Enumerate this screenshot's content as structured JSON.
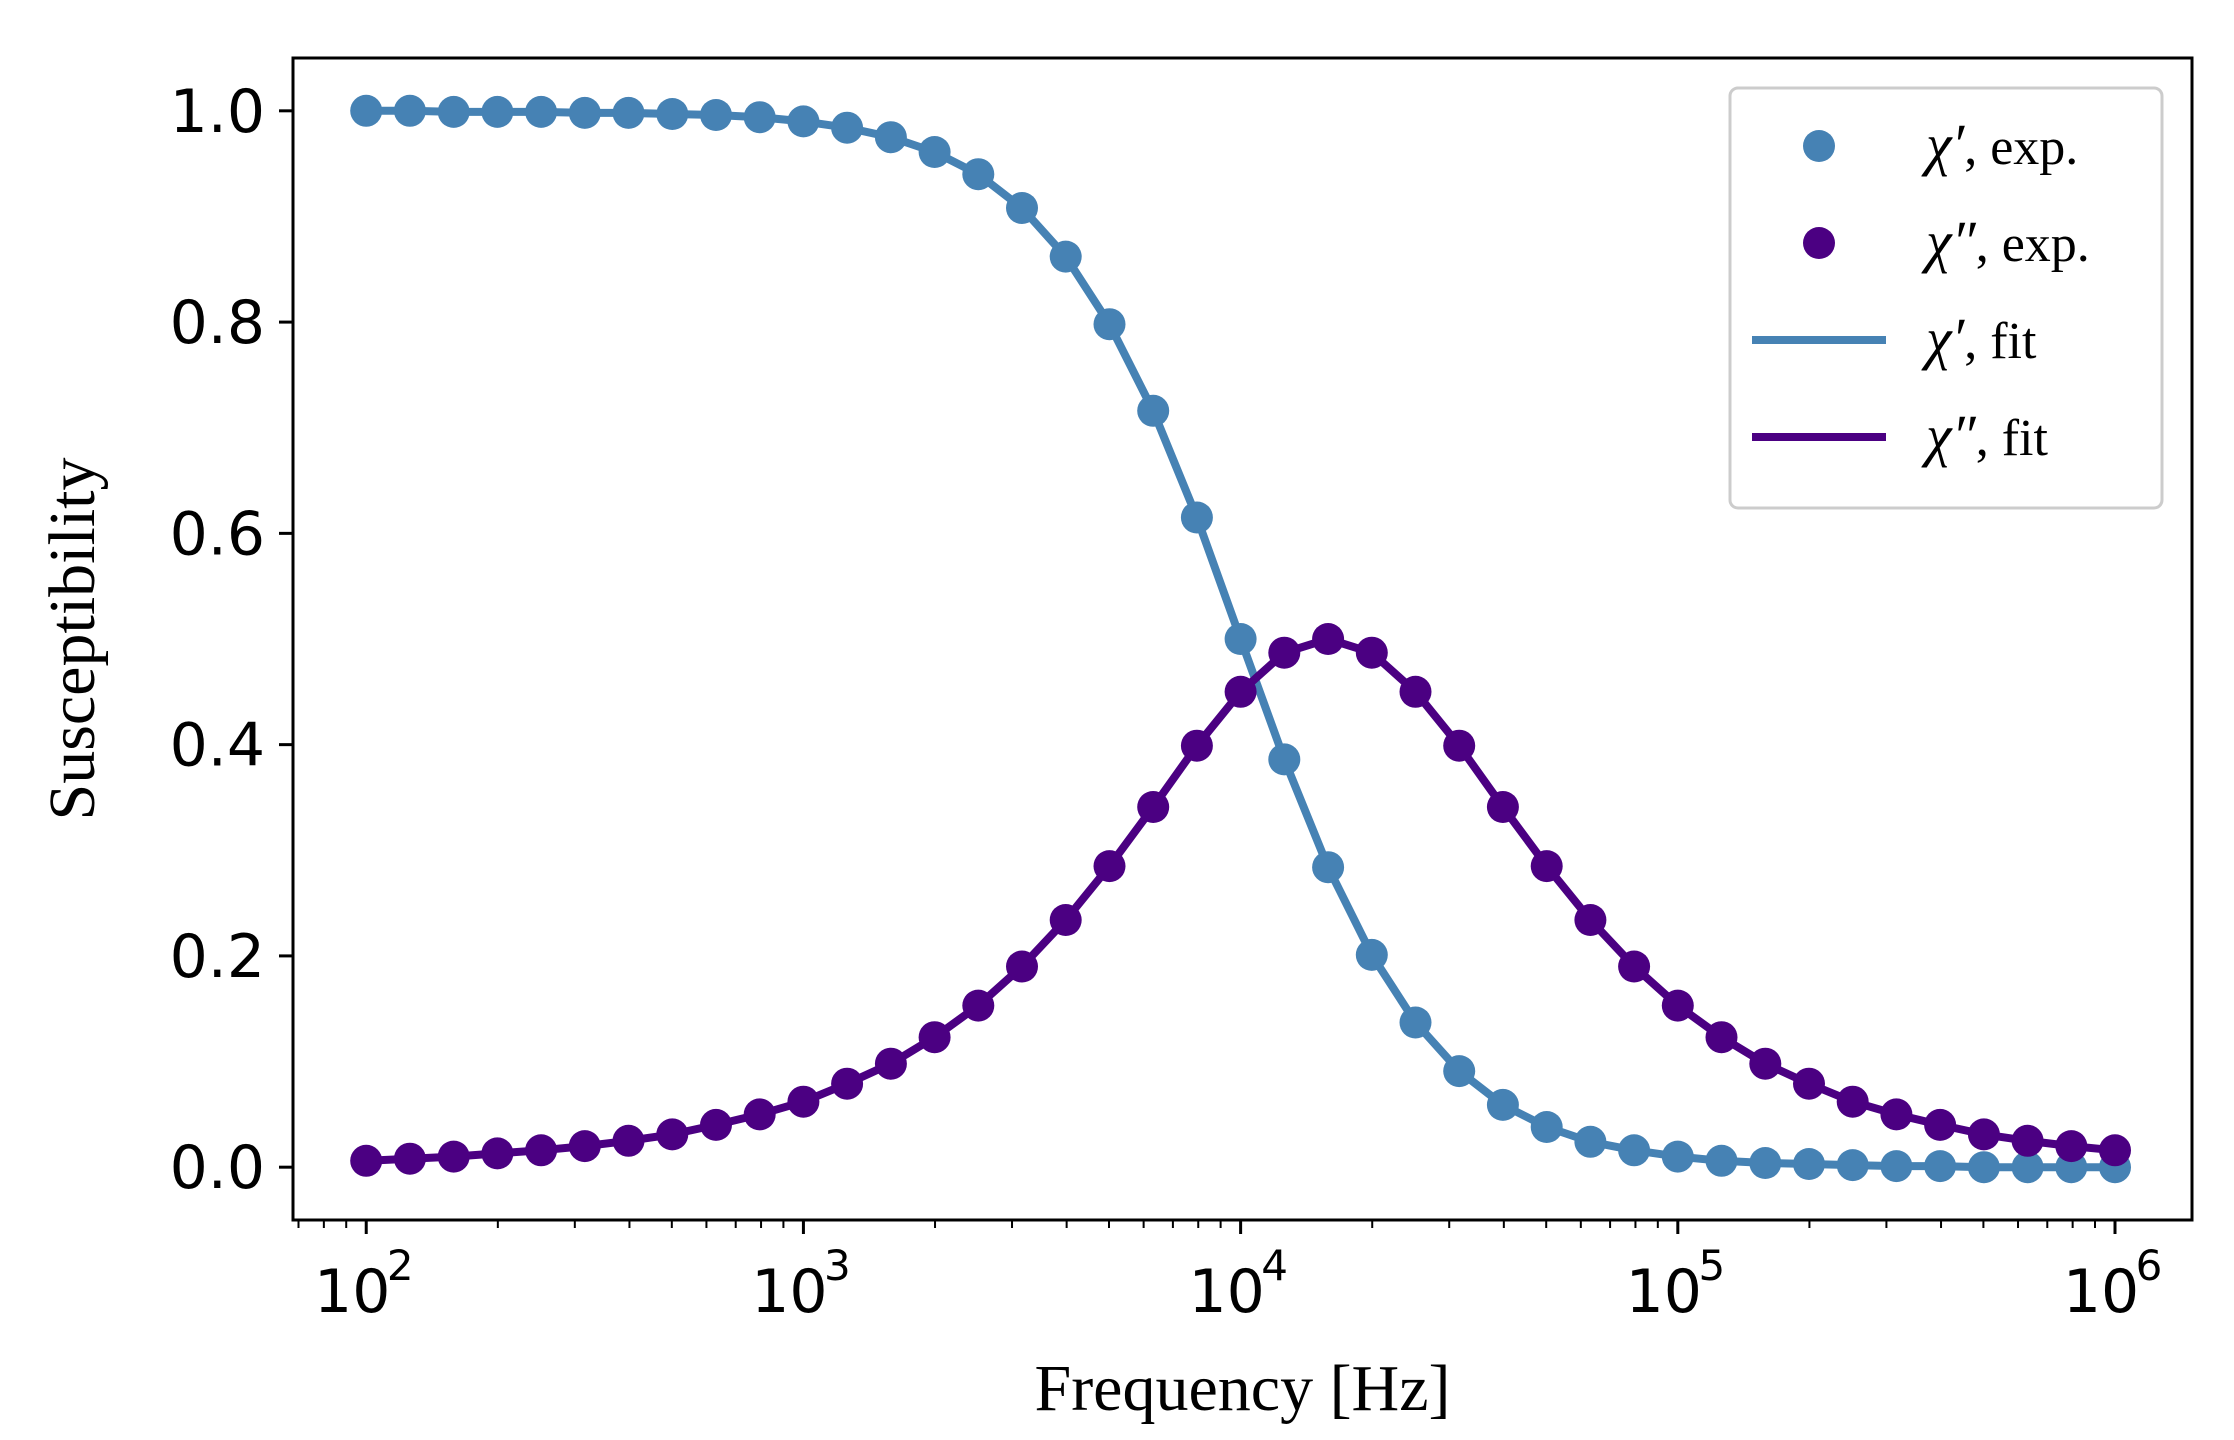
{
  "chart_data": {
    "type": "line",
    "title": "",
    "xlabel": "Frequency [Hz]",
    "ylabel": "Susceptibility",
    "xscale": "log",
    "xlim": [
      68,
      1500000
    ],
    "ylim": [
      -0.05,
      1.05
    ],
    "grid": false,
    "legend_position": "top-right",
    "x_ticks": [
      {
        "value": 100,
        "base": "10",
        "exp": "2"
      },
      {
        "value": 1000,
        "base": "10",
        "exp": "3"
      },
      {
        "value": 10000,
        "base": "10",
        "exp": "4"
      },
      {
        "value": 100000,
        "base": "10",
        "exp": "5"
      },
      {
        "value": 1000000,
        "base": "10",
        "exp": "6"
      }
    ],
    "y_ticks": [
      {
        "value": 0.0,
        "label": "0.0"
      },
      {
        "value": 0.2,
        "label": "0.2"
      },
      {
        "value": 0.4,
        "label": "0.4"
      },
      {
        "value": 0.6,
        "label": "0.6"
      },
      {
        "value": 0.8,
        "label": "0.8"
      },
      {
        "value": 1.0,
        "label": "1.0"
      }
    ],
    "x": [
      100,
      125.89,
      158.49,
      199.53,
      251.19,
      316.23,
      398.11,
      501.19,
      630.96,
      794.33,
      1000,
      1258.9,
      1584.9,
      1995.3,
      2511.9,
      3162.3,
      3981.1,
      5011.9,
      6309.6,
      7943.3,
      10000,
      12589,
      15849,
      19953,
      25119,
      31623,
      39811,
      50119,
      63096,
      79433,
      100000,
      125890,
      158490,
      199530,
      251190,
      316230,
      398110,
      501190,
      630960,
      794330,
      1000000
    ],
    "series": [
      {
        "name": "χ′, exp.",
        "name_symbol": "χ′",
        "name_suffix": ", exp.",
        "style": "markers",
        "color": "#4682b4",
        "values": [
          1.0,
          1.0,
          0.999,
          0.999,
          0.999,
          0.998,
          0.998,
          0.997,
          0.996,
          0.994,
          0.99,
          0.984,
          0.975,
          0.961,
          0.94,
          0.908,
          0.862,
          0.798,
          0.716,
          0.615,
          0.5,
          0.386,
          0.284,
          0.201,
          0.137,
          0.091,
          0.059,
          0.038,
          0.024,
          0.016,
          0.01,
          0.006,
          0.004,
          0.003,
          0.002,
          0.001,
          0.001,
          0.0,
          0.0,
          0.0,
          0.0
        ]
      },
      {
        "name": "χ″, exp.",
        "name_symbol": "χ″",
        "name_suffix": ", exp.",
        "style": "markers",
        "color": "#4b0082",
        "values": [
          0.006,
          0.008,
          0.01,
          0.013,
          0.016,
          0.02,
          0.025,
          0.031,
          0.04,
          0.05,
          0.062,
          0.079,
          0.098,
          0.123,
          0.153,
          0.19,
          0.234,
          0.285,
          0.341,
          0.399,
          0.45,
          0.487,
          0.5,
          0.487,
          0.45,
          0.399,
          0.341,
          0.285,
          0.234,
          0.19,
          0.153,
          0.123,
          0.098,
          0.079,
          0.062,
          0.05,
          0.04,
          0.031,
          0.025,
          0.02,
          0.016
        ]
      },
      {
        "name": "χ′, fit",
        "name_symbol": "χ′",
        "name_suffix": ", fit",
        "style": "line",
        "color": "#4682b4",
        "values": [
          1.0,
          1.0,
          0.999,
          0.999,
          0.999,
          0.998,
          0.998,
          0.997,
          0.996,
          0.994,
          0.99,
          0.984,
          0.975,
          0.961,
          0.94,
          0.908,
          0.862,
          0.798,
          0.716,
          0.615,
          0.5,
          0.386,
          0.284,
          0.201,
          0.137,
          0.091,
          0.059,
          0.038,
          0.024,
          0.016,
          0.01,
          0.006,
          0.004,
          0.003,
          0.002,
          0.001,
          0.001,
          0.0,
          0.0,
          0.0,
          0.0
        ]
      },
      {
        "name": "χ″, fit",
        "name_symbol": "χ″",
        "name_suffix": ", fit",
        "style": "line",
        "color": "#4b0082",
        "values": [
          0.006,
          0.008,
          0.01,
          0.013,
          0.016,
          0.02,
          0.025,
          0.031,
          0.04,
          0.05,
          0.062,
          0.079,
          0.098,
          0.123,
          0.153,
          0.19,
          0.234,
          0.285,
          0.341,
          0.399,
          0.45,
          0.487,
          0.5,
          0.487,
          0.45,
          0.399,
          0.341,
          0.285,
          0.234,
          0.19,
          0.153,
          0.123,
          0.098,
          0.079,
          0.062,
          0.05,
          0.04,
          0.031,
          0.025,
          0.02,
          0.016
        ]
      }
    ]
  }
}
